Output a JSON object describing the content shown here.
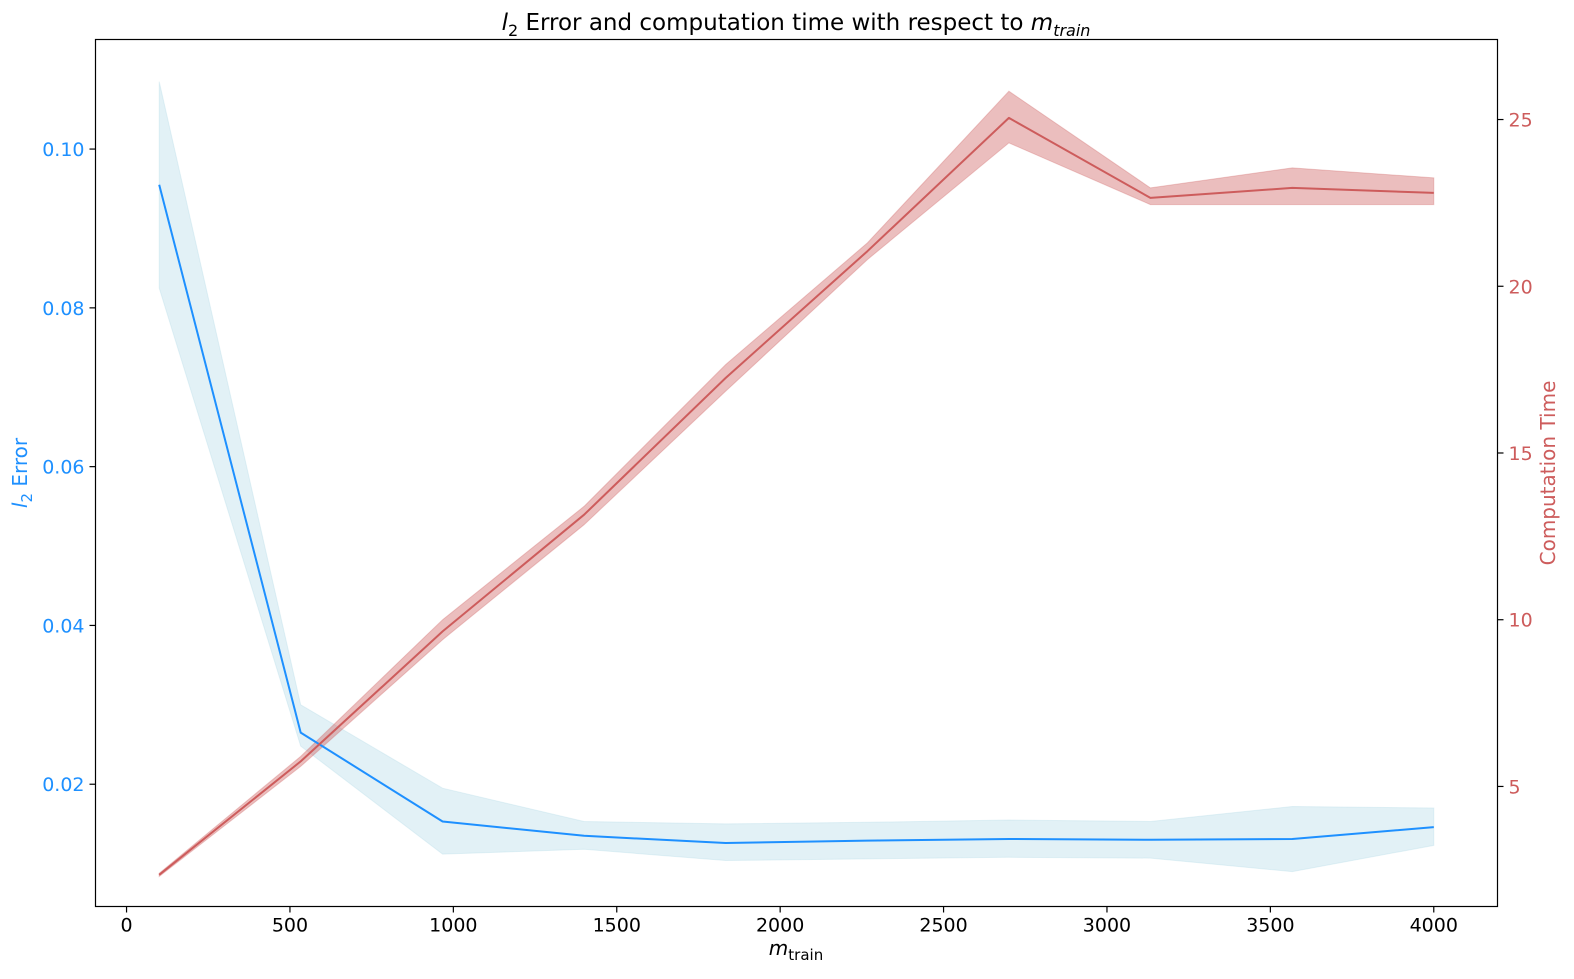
{
  "chart_data": {
    "type": "line",
    "title": {
      "var": "l",
      "sub": "2",
      "mid": " Error and computation time with respect to ",
      "var2": "m",
      "sub2": "train"
    },
    "xlabel": {
      "var": "m",
      "sub": "train"
    },
    "ylabel_left": {
      "var": "l",
      "sub": "2",
      "rest": " Error"
    },
    "ylabel_right": "Computation Time",
    "xlim": [
      -95,
      4195
    ],
    "ylim_left": [
      0.0046,
      0.1138
    ],
    "ylim_right": [
      1.4,
      27.4
    ],
    "x_ticks": [
      0,
      500,
      1000,
      1500,
      2000,
      2500,
      3000,
      3500,
      4000
    ],
    "y_left_ticks": [
      0.02,
      0.04,
      0.06,
      0.08,
      0.1
    ],
    "y_left_tick_labels": [
      "0.02",
      "0.04",
      "0.06",
      "0.08",
      "0.10"
    ],
    "y_right_ticks": [
      5,
      10,
      15,
      20,
      25
    ],
    "grid": false,
    "x": [
      100,
      533,
      967,
      1400,
      1833,
      2267,
      2700,
      3133,
      3567,
      4000
    ],
    "series": [
      {
        "axis": "left",
        "color": "#1e90ff",
        "band_color": "#add8e6",
        "values": [
          0.0955,
          0.0265,
          0.0153,
          0.0135,
          0.0126,
          0.0129,
          0.0131,
          0.013,
          0.0131,
          0.0146
        ],
        "lower": [
          0.0825,
          0.0248,
          0.0112,
          0.0118,
          0.0104,
          0.0106,
          0.0108,
          0.0107,
          0.009,
          0.0123
        ],
        "upper": [
          0.1085,
          0.03,
          0.0195,
          0.0153,
          0.015,
          0.0152,
          0.0155,
          0.0153,
          0.0172,
          0.017
        ]
      },
      {
        "axis": "right",
        "color": "#cd5c5c",
        "band_color": "#cd5c5c",
        "values": [
          2.35,
          5.75,
          9.65,
          13.15,
          17.25,
          21.05,
          25.05,
          22.65,
          22.95,
          22.8
        ],
        "lower": [
          2.3,
          5.6,
          9.4,
          12.85,
          16.85,
          20.8,
          24.3,
          22.45,
          22.45,
          22.45
        ],
        "upper": [
          2.4,
          5.9,
          10.0,
          13.4,
          17.65,
          21.3,
          25.85,
          22.95,
          23.55,
          23.25
        ]
      }
    ]
  }
}
